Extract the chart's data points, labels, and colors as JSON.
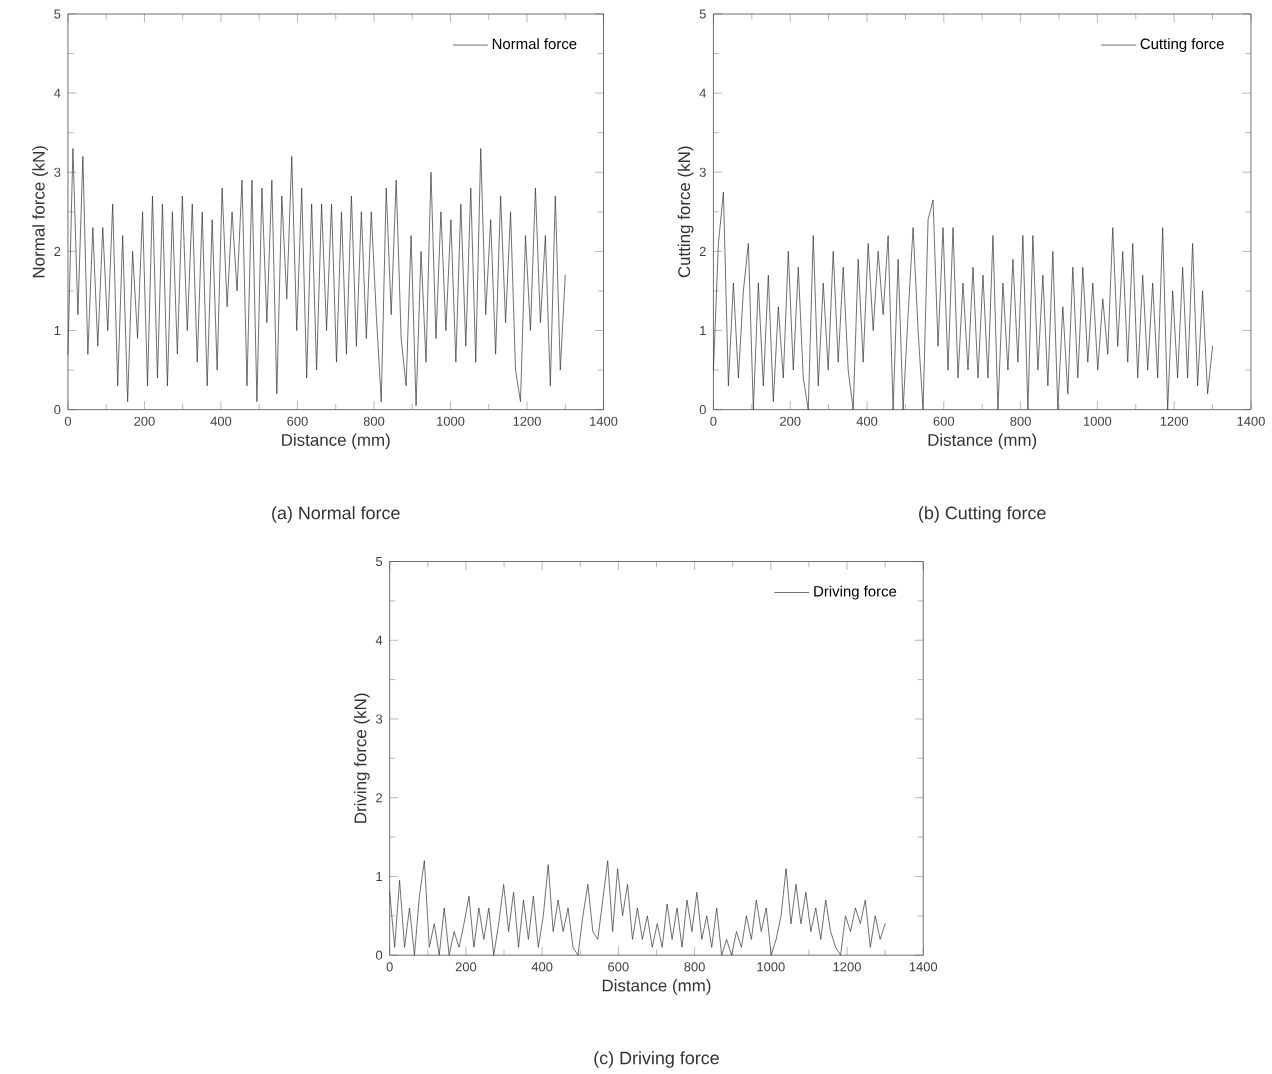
{
  "chart_data": [
    {
      "type": "line",
      "xlabel": "Distance (mm)",
      "ylabel": "Normal force (kN)",
      "xlim": [
        0,
        1400
      ],
      "xticks": [
        0,
        200,
        400,
        600,
        800,
        1000,
        1200,
        1400
      ],
      "ylim": [
        0,
        5
      ],
      "yticks": [
        0,
        1,
        2,
        3,
        4,
        5
      ],
      "legend": "top right",
      "annotations": [
        "(a) Normal force"
      ],
      "x": [
        0,
        13,
        26,
        39,
        52,
        65,
        78,
        91,
        104,
        117,
        130,
        143,
        156,
        169,
        182,
        195,
        208,
        221,
        234,
        247,
        260,
        273,
        286,
        299,
        312,
        325,
        338,
        351,
        364,
        377,
        390,
        403,
        416,
        429,
        442,
        455,
        468,
        481,
        494,
        507,
        520,
        533,
        546,
        559,
        572,
        585,
        598,
        611,
        624,
        637,
        650,
        663,
        676,
        689,
        702,
        715,
        728,
        741,
        754,
        767,
        780,
        793,
        806,
        819,
        832,
        845,
        858,
        871,
        884,
        897,
        910,
        923,
        936,
        949,
        962,
        975,
        988,
        1001,
        1014,
        1027,
        1040,
        1053,
        1066,
        1079,
        1092,
        1105,
        1118,
        1131,
        1144,
        1157,
        1170,
        1183,
        1196,
        1209,
        1222,
        1235,
        1248,
        1261,
        1274,
        1287,
        1300
      ],
      "series": [
        {
          "name": "Normal force",
          "color": "#333333",
          "values": [
            0.7,
            3.3,
            1.2,
            3.2,
            0.7,
            2.3,
            0.8,
            2.3,
            1.0,
            2.6,
            0.3,
            2.2,
            0.1,
            2.0,
            0.9,
            2.5,
            0.3,
            2.7,
            0.4,
            2.6,
            0.3,
            2.5,
            0.7,
            2.7,
            1.0,
            2.6,
            0.6,
            2.5,
            0.3,
            2.4,
            0.5,
            2.8,
            1.3,
            2.5,
            1.5,
            2.9,
            0.3,
            2.9,
            0.1,
            2.8,
            1.1,
            2.9,
            0.2,
            2.7,
            1.4,
            3.2,
            1.0,
            2.8,
            0.4,
            2.6,
            0.5,
            2.6,
            1.0,
            2.6,
            0.6,
            2.5,
            0.7,
            2.7,
            0.8,
            2.5,
            0.9,
            2.5,
            1.2,
            0.1,
            2.8,
            1.2,
            2.9,
            0.9,
            0.3,
            2.2,
            0.05,
            2.0,
            0.6,
            3.0,
            0.9,
            2.5,
            1.0,
            2.4,
            0.6,
            2.6,
            0.8,
            2.8,
            0.6,
            3.3,
            1.2,
            2.4,
            0.7,
            2.7,
            1.1,
            2.5,
            0.5,
            0.1,
            2.2,
            1.0,
            2.8,
            1.1,
            2.2,
            0.3,
            2.7,
            0.5,
            1.7
          ]
        }
      ]
    },
    {
      "type": "line",
      "xlabel": "Distance (mm)",
      "ylabel": "Cutting force (kN)",
      "xlim": [
        0,
        1400
      ],
      "xticks": [
        0,
        200,
        400,
        600,
        800,
        1000,
        1200,
        1400
      ],
      "ylim": [
        0,
        5
      ],
      "yticks": [
        0,
        1,
        2,
        3,
        4,
        5
      ],
      "legend": "top right",
      "annotations": [
        "(b) Cutting force"
      ],
      "x": [
        0,
        13,
        26,
        39,
        52,
        65,
        78,
        91,
        104,
        117,
        130,
        143,
        156,
        169,
        182,
        195,
        208,
        221,
        234,
        247,
        260,
        273,
        286,
        299,
        312,
        325,
        338,
        351,
        364,
        377,
        390,
        403,
        416,
        429,
        442,
        455,
        468,
        481,
        494,
        507,
        520,
        533,
        546,
        559,
        572,
        585,
        598,
        611,
        624,
        637,
        650,
        663,
        676,
        689,
        702,
        715,
        728,
        741,
        754,
        767,
        780,
        793,
        806,
        819,
        832,
        845,
        858,
        871,
        884,
        897,
        910,
        923,
        936,
        949,
        962,
        975,
        988,
        1001,
        1014,
        1027,
        1040,
        1053,
        1066,
        1079,
        1092,
        1105,
        1118,
        1131,
        1144,
        1157,
        1170,
        1183,
        1196,
        1209,
        1222,
        1235,
        1248,
        1261,
        1274,
        1287,
        1300
      ],
      "series": [
        {
          "name": "Cutting force",
          "color": "#333333",
          "values": [
            0.5,
            2.1,
            2.75,
            0.3,
            1.6,
            0.4,
            1.5,
            2.1,
            0.0,
            1.6,
            0.3,
            1.7,
            0.1,
            1.3,
            0.4,
            2.0,
            0.5,
            1.8,
            0.4,
            0.0,
            2.2,
            0.3,
            1.6,
            0.5,
            2.0,
            0.6,
            1.8,
            0.5,
            0.0,
            1.9,
            0.6,
            2.1,
            1.0,
            2.0,
            1.2,
            2.2,
            0.0,
            1.9,
            0.0,
            1.2,
            2.3,
            1.0,
            0.0,
            2.4,
            2.65,
            0.8,
            2.3,
            0.5,
            2.3,
            0.4,
            1.6,
            0.5,
            1.8,
            0.4,
            1.7,
            0.4,
            2.2,
            0.0,
            1.6,
            0.5,
            1.9,
            0.6,
            2.2,
            0.0,
            2.2,
            0.5,
            1.7,
            0.3,
            2.0,
            0.0,
            1.3,
            0.2,
            1.8,
            0.4,
            1.8,
            0.6,
            1.6,
            0.5,
            1.4,
            0.7,
            2.3,
            0.8,
            2.0,
            0.6,
            2.1,
            0.4,
            1.7,
            0.5,
            1.6,
            0.4,
            2.3,
            0.0,
            1.5,
            0.4,
            1.8,
            0.4,
            2.1,
            0.3,
            1.5,
            0.2,
            0.8
          ]
        }
      ]
    },
    {
      "type": "line",
      "xlabel": "Distance (mm)",
      "ylabel": "Driving force (kN)",
      "xlim": [
        0,
        1400
      ],
      "xticks": [
        0,
        200,
        400,
        600,
        800,
        1000,
        1200,
        1400
      ],
      "ylim": [
        0,
        5
      ],
      "yticks": [
        0,
        1,
        2,
        3,
        4,
        5
      ],
      "legend": "top right",
      "annotations": [
        "(c) Driving force"
      ],
      "x": [
        0,
        13,
        26,
        39,
        52,
        65,
        78,
        91,
        104,
        117,
        130,
        143,
        156,
        169,
        182,
        195,
        208,
        221,
        234,
        247,
        260,
        273,
        286,
        299,
        312,
        325,
        338,
        351,
        364,
        377,
        390,
        403,
        416,
        429,
        442,
        455,
        468,
        481,
        494,
        507,
        520,
        533,
        546,
        559,
        572,
        585,
        598,
        611,
        624,
        637,
        650,
        663,
        676,
        689,
        702,
        715,
        728,
        741,
        754,
        767,
        780,
        793,
        806,
        819,
        832,
        845,
        858,
        871,
        884,
        897,
        910,
        923,
        936,
        949,
        962,
        975,
        988,
        1001,
        1014,
        1027,
        1040,
        1053,
        1066,
        1079,
        1092,
        1105,
        1118,
        1131,
        1144,
        1157,
        1170,
        1183,
        1196,
        1209,
        1222,
        1235,
        1248,
        1261,
        1274,
        1287,
        1300
      ],
      "series": [
        {
          "name": "Driving force",
          "color": "#333333",
          "values": [
            0.8,
            0.1,
            0.95,
            0.1,
            0.6,
            0.0,
            0.75,
            1.2,
            0.1,
            0.4,
            0.0,
            0.6,
            0.0,
            0.3,
            0.1,
            0.4,
            0.75,
            0.1,
            0.6,
            0.2,
            0.6,
            0.0,
            0.4,
            0.9,
            0.3,
            0.8,
            0.1,
            0.7,
            0.2,
            0.75,
            0.1,
            0.5,
            1.15,
            0.3,
            0.7,
            0.3,
            0.6,
            0.1,
            0.0,
            0.5,
            0.9,
            0.3,
            0.2,
            0.7,
            1.2,
            0.3,
            1.1,
            0.5,
            0.9,
            0.2,
            0.6,
            0.2,
            0.5,
            0.1,
            0.4,
            0.1,
            0.65,
            0.2,
            0.6,
            0.1,
            0.7,
            0.3,
            0.8,
            0.2,
            0.5,
            0.1,
            0.6,
            0.0,
            0.2,
            0.0,
            0.3,
            0.1,
            0.5,
            0.2,
            0.7,
            0.3,
            0.6,
            0.0,
            0.2,
            0.5,
            1.1,
            0.4,
            0.9,
            0.4,
            0.8,
            0.3,
            0.6,
            0.2,
            0.7,
            0.3,
            0.1,
            0.0,
            0.5,
            0.3,
            0.6,
            0.4,
            0.7,
            0.1,
            0.5,
            0.2,
            0.4
          ]
        }
      ]
    }
  ]
}
